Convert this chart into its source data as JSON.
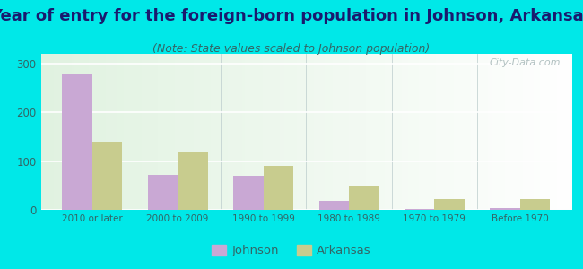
{
  "title": "Year of entry for the foreign-born population in Johnson, Arkansas",
  "subtitle": "(Note: State values scaled to Johnson population)",
  "categories": [
    "2010 or later",
    "2000 to 2009",
    "1990 to 1999",
    "1980 to 1989",
    "1970 to 1979",
    "Before 1970"
  ],
  "johnson_values": [
    280,
    72,
    70,
    18,
    2,
    4
  ],
  "arkansas_values": [
    140,
    118,
    90,
    50,
    22,
    22
  ],
  "johnson_color": "#c9a8d4",
  "arkansas_color": "#c8cc8e",
  "background_outer": "#00e8e8",
  "background_inner_top": "#e8f5e0",
  "background_inner_bottom": "#d0f5f0",
  "title_fontsize": 13,
  "subtitle_fontsize": 9,
  "ylim": [
    0,
    320
  ],
  "yticks": [
    0,
    100,
    200,
    300
  ],
  "bar_width": 0.35,
  "legend_johnson": "Johnson",
  "legend_arkansas": "Arkansas"
}
